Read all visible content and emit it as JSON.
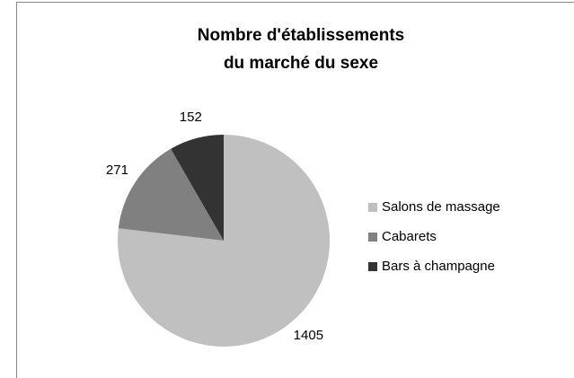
{
  "chart_data": {
    "type": "pie",
    "title": [
      "Nombre d'établissements",
      "du marché du sexe"
    ],
    "categories": [
      "Salons de massage",
      "Cabarets",
      "Bars à champagne"
    ],
    "values": [
      1405,
      271,
      152
    ],
    "colors": [
      "#c0c0c0",
      "#808080",
      "#333333"
    ],
    "legend": "right"
  }
}
